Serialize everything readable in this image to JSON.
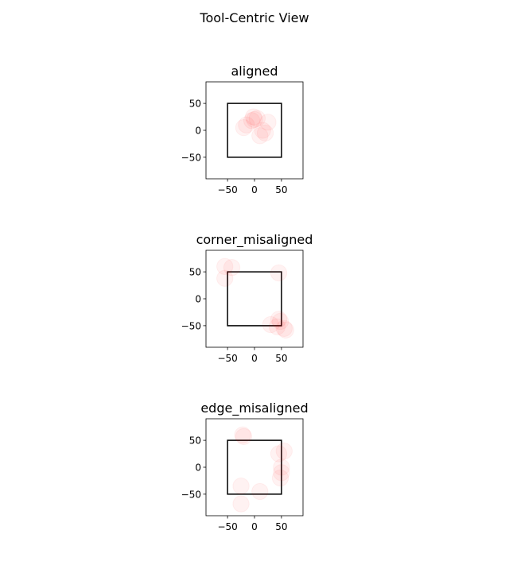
{
  "figure": {
    "suptitle": "Tool-Centric View"
  },
  "style": {
    "circle_color": "#ff0000",
    "circle_alpha": 0.05,
    "circle_radius": 15,
    "square_color": "#000000"
  },
  "chart_data": [
    {
      "type": "scatter",
      "title": "aligned",
      "xlabel": "",
      "ylabel": "",
      "xlim": [
        -90,
        90
      ],
      "ylim": [
        -90,
        90
      ],
      "xticks": [
        -50,
        0,
        50
      ],
      "yticks": [
        -50,
        0,
        50
      ],
      "xtick_labels": [
        "−50",
        "0",
        "50"
      ],
      "ytick_labels": [
        "−50",
        "0",
        "50"
      ],
      "grid": false,
      "square": {
        "xmin": -50,
        "xmax": 50,
        "ymin": -50,
        "ymax": 50
      },
      "points": [
        {
          "x": 0,
          "y": 20
        },
        {
          "x": -5,
          "y": 18
        },
        {
          "x": 5,
          "y": 22
        },
        {
          "x": -15,
          "y": 10
        },
        {
          "x": -20,
          "y": 5
        },
        {
          "x": 25,
          "y": 15
        },
        {
          "x": 15,
          "y": 0
        },
        {
          "x": 20,
          "y": -5
        },
        {
          "x": 10,
          "y": -10
        },
        {
          "x": -2,
          "y": 25
        }
      ]
    },
    {
      "type": "scatter",
      "title": "corner_misaligned",
      "xlabel": "",
      "ylabel": "",
      "xlim": [
        -90,
        90
      ],
      "ylim": [
        -90,
        90
      ],
      "xticks": [
        -50,
        0,
        50
      ],
      "yticks": [
        -50,
        0,
        50
      ],
      "xtick_labels": [
        "−50",
        "0",
        "50"
      ],
      "ytick_labels": [
        "−50",
        "0",
        "50"
      ],
      "grid": false,
      "square": {
        "xmin": -50,
        "xmax": 50,
        "ymin": -50,
        "ymax": 50
      },
      "points": [
        {
          "x": -55,
          "y": 60
        },
        {
          "x": -42,
          "y": 58
        },
        {
          "x": -55,
          "y": 38
        },
        {
          "x": 45,
          "y": 48
        },
        {
          "x": 45,
          "y": -38
        },
        {
          "x": 48,
          "y": -42
        },
        {
          "x": 30,
          "y": -48
        },
        {
          "x": 55,
          "y": -55
        },
        {
          "x": 58,
          "y": -58
        },
        {
          "x": 42,
          "y": -52
        }
      ]
    },
    {
      "type": "scatter",
      "title": "edge_misaligned",
      "xlabel": "",
      "ylabel": "",
      "xlim": [
        -90,
        90
      ],
      "ylim": [
        -90,
        90
      ],
      "xticks": [
        -50,
        0,
        50
      ],
      "yticks": [
        -50,
        0,
        50
      ],
      "xtick_labels": [
        "−50",
        "0",
        "50"
      ],
      "ytick_labels": [
        "−50",
        "0",
        "50"
      ],
      "grid": false,
      "square": {
        "xmin": -50,
        "xmax": 50,
        "ymin": -50,
        "ymax": 50
      },
      "points": [
        {
          "x": -22,
          "y": 60
        },
        {
          "x": -20,
          "y": 57
        },
        {
          "x": 45,
          "y": 25
        },
        {
          "x": 55,
          "y": 30
        },
        {
          "x": 50,
          "y": 0
        },
        {
          "x": 50,
          "y": -10
        },
        {
          "x": 48,
          "y": -20
        },
        {
          "x": -25,
          "y": -35
        },
        {
          "x": -25,
          "y": -68
        },
        {
          "x": 10,
          "y": -45
        }
      ]
    }
  ]
}
